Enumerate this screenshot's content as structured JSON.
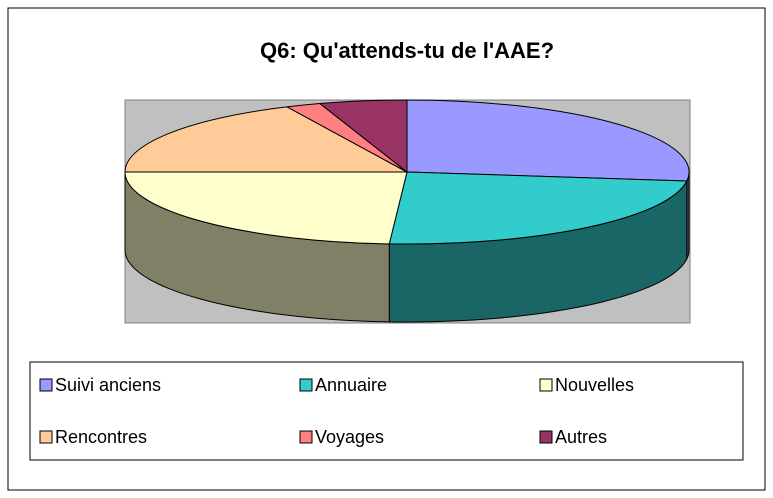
{
  "chart_data": {
    "type": "pie",
    "title": "Q6: Qu'attends-tu de l'AAE?",
    "categories": [
      "Suivi anciens",
      "Annuaire",
      "Nouvelles",
      "Rencontres",
      "Voyages",
      "Autres"
    ],
    "values": [
      27,
      24,
      24,
      18,
      2,
      5
    ],
    "colors": [
      "#9999ff",
      "#33cccc",
      "#ffffcc",
      "#ffcc99",
      "#ff8080",
      "#993366"
    ],
    "legend": "bottom"
  }
}
